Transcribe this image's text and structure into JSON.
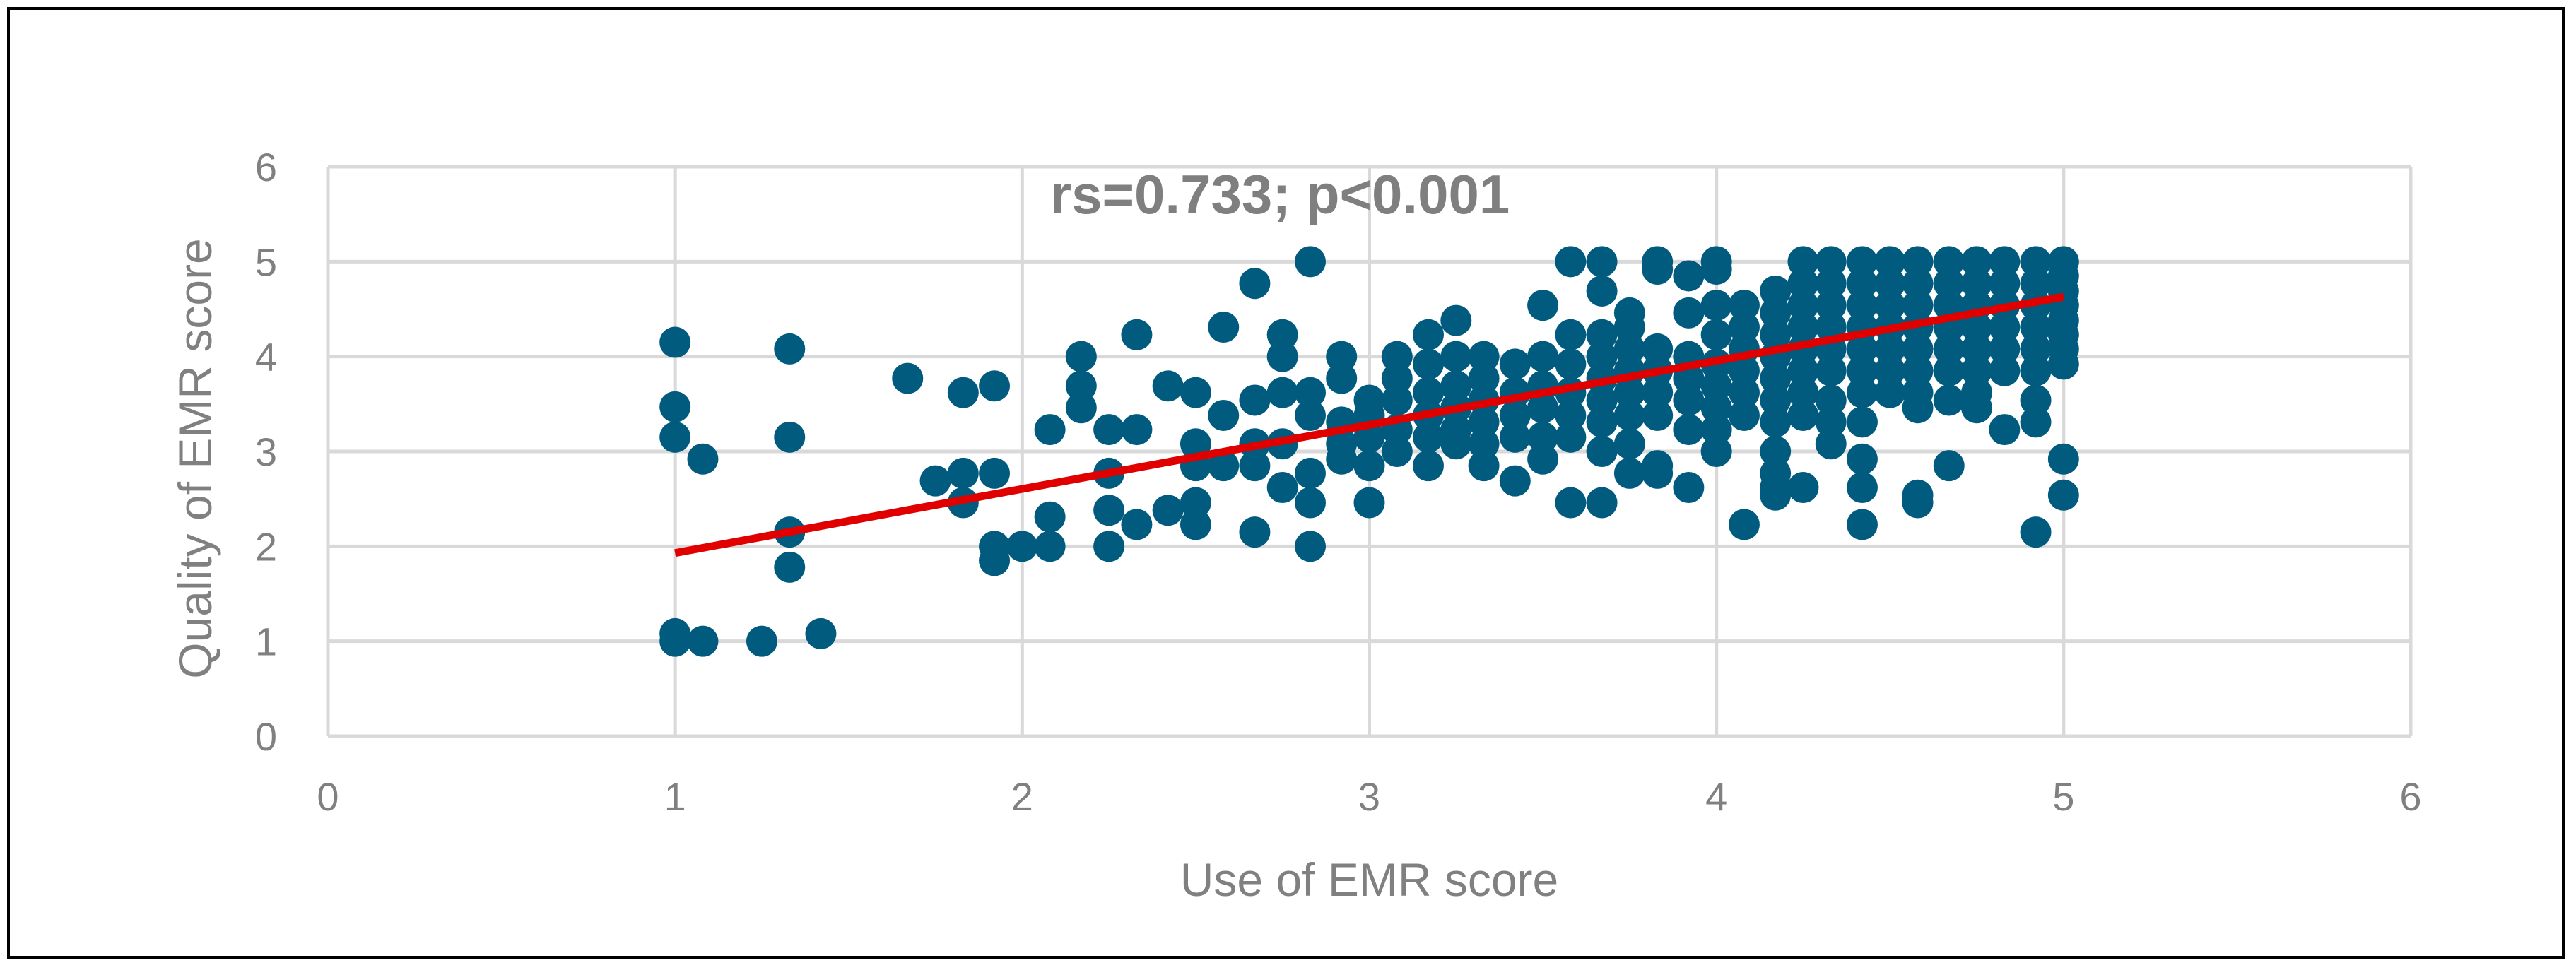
{
  "chart_data": {
    "type": "scatter",
    "title": "",
    "annotation": "rs=0.733; p<0.001",
    "xlabel": "Use of EMR score",
    "ylabel": "Quality of EMR score",
    "xlim": [
      0,
      6
    ],
    "ylim": [
      0,
      6
    ],
    "xticks": [
      0,
      1,
      2,
      3,
      4,
      5,
      6
    ],
    "yticks": [
      0,
      1,
      2,
      3,
      4,
      5,
      6
    ],
    "grid": true,
    "legend": "none",
    "colors": {
      "points": "#005b7f",
      "trendline": "#e00000",
      "grid": "#d9d9d9",
      "text": "#808080"
    },
    "trendline": {
      "x": [
        1,
        5
      ],
      "y": [
        1.93,
        4.63
      ]
    },
    "series": [
      {
        "values": [
          [
            1.0,
            4.15
          ],
          [
            1.0,
            3.47
          ],
          [
            1.0,
            3.15
          ],
          [
            1.0,
            1.08
          ],
          [
            1.0,
            1.0
          ],
          [
            1.08,
            2.92
          ],
          [
            1.08,
            1.0
          ],
          [
            1.25,
            1.0
          ],
          [
            1.33,
            4.08
          ],
          [
            1.33,
            3.15
          ],
          [
            1.33,
            2.15
          ],
          [
            1.33,
            1.78
          ],
          [
            1.42,
            1.08
          ],
          [
            1.67,
            3.77
          ],
          [
            1.75,
            2.69
          ],
          [
            1.83,
            3.62
          ],
          [
            1.83,
            2.77
          ],
          [
            1.83,
            2.46
          ],
          [
            1.92,
            3.69
          ],
          [
            1.92,
            2.77
          ],
          [
            1.92,
            2.0
          ],
          [
            1.92,
            1.85
          ],
          [
            2.0,
            2.0
          ],
          [
            2.08,
            3.23
          ],
          [
            2.08,
            2.31
          ],
          [
            2.08,
            2.0
          ],
          [
            2.17,
            4.0
          ],
          [
            2.17,
            3.69
          ],
          [
            2.17,
            3.46
          ],
          [
            2.25,
            3.23
          ],
          [
            2.25,
            2.77
          ],
          [
            2.25,
            2.38
          ],
          [
            2.25,
            2.0
          ],
          [
            2.33,
            4.23
          ],
          [
            2.33,
            3.23
          ],
          [
            2.33,
            2.23
          ],
          [
            2.42,
            3.69
          ],
          [
            2.42,
            2.38
          ],
          [
            2.5,
            3.62
          ],
          [
            2.5,
            3.08
          ],
          [
            2.5,
            2.85
          ],
          [
            2.5,
            2.46
          ],
          [
            2.5,
            2.23
          ],
          [
            2.58,
            4.31
          ],
          [
            2.58,
            3.38
          ],
          [
            2.58,
            2.85
          ],
          [
            2.67,
            4.77
          ],
          [
            2.67,
            3.54
          ],
          [
            2.67,
            3.08
          ],
          [
            2.67,
            2.85
          ],
          [
            2.67,
            2.15
          ],
          [
            2.75,
            4.23
          ],
          [
            2.75,
            4.0
          ],
          [
            2.75,
            3.62
          ],
          [
            2.75,
            3.08
          ],
          [
            2.75,
            2.62
          ],
          [
            2.83,
            5.0
          ],
          [
            2.83,
            3.62
          ],
          [
            2.83,
            3.38
          ],
          [
            2.83,
            2.77
          ],
          [
            2.83,
            2.46
          ],
          [
            2.83,
            2.0
          ],
          [
            2.92,
            4.0
          ],
          [
            2.92,
            3.77
          ],
          [
            2.92,
            3.31
          ],
          [
            2.92,
            3.08
          ],
          [
            2.92,
            2.92
          ],
          [
            3.0,
            3.54
          ],
          [
            3.0,
            3.38
          ],
          [
            3.0,
            3.15
          ],
          [
            3.0,
            2.85
          ],
          [
            3.0,
            2.46
          ],
          [
            3.08,
            4.0
          ],
          [
            3.08,
            3.77
          ],
          [
            3.08,
            3.54
          ],
          [
            3.08,
            3.23
          ],
          [
            3.08,
            3.0
          ],
          [
            3.17,
            4.23
          ],
          [
            3.17,
            3.92
          ],
          [
            3.17,
            3.62
          ],
          [
            3.17,
            3.38
          ],
          [
            3.17,
            3.15
          ],
          [
            3.17,
            2.85
          ],
          [
            3.25,
            4.38
          ],
          [
            3.25,
            4.0
          ],
          [
            3.25,
            3.69
          ],
          [
            3.25,
            3.46
          ],
          [
            3.25,
            3.23
          ],
          [
            3.25,
            3.08
          ],
          [
            3.33,
            4.0
          ],
          [
            3.33,
            3.77
          ],
          [
            3.33,
            3.54
          ],
          [
            3.33,
            3.31
          ],
          [
            3.33,
            3.08
          ],
          [
            3.33,
            2.85
          ],
          [
            3.42,
            3.92
          ],
          [
            3.42,
            3.62
          ],
          [
            3.42,
            3.38
          ],
          [
            3.42,
            3.15
          ],
          [
            3.42,
            2.69
          ],
          [
            3.5,
            4.54
          ],
          [
            3.5,
            4.0
          ],
          [
            3.5,
            3.69
          ],
          [
            3.5,
            3.46
          ],
          [
            3.5,
            3.15
          ],
          [
            3.5,
            2.92
          ],
          [
            3.58,
            5.0
          ],
          [
            3.58,
            4.23
          ],
          [
            3.58,
            3.92
          ],
          [
            3.58,
            3.62
          ],
          [
            3.58,
            3.38
          ],
          [
            3.58,
            3.15
          ],
          [
            3.58,
            2.46
          ],
          [
            3.67,
            5.0
          ],
          [
            3.67,
            4.69
          ],
          [
            3.67,
            4.23
          ],
          [
            3.67,
            4.0
          ],
          [
            3.67,
            3.77
          ],
          [
            3.67,
            3.54
          ],
          [
            3.67,
            3.31
          ],
          [
            3.67,
            3.0
          ],
          [
            3.67,
            2.46
          ],
          [
            3.75,
            4.46
          ],
          [
            3.75,
            4.31
          ],
          [
            3.75,
            4.08
          ],
          [
            3.75,
            3.85
          ],
          [
            3.75,
            3.62
          ],
          [
            3.75,
            3.38
          ],
          [
            3.75,
            3.08
          ],
          [
            3.75,
            2.77
          ],
          [
            3.83,
            5.0
          ],
          [
            3.83,
            4.92
          ],
          [
            3.83,
            4.08
          ],
          [
            3.83,
            3.85
          ],
          [
            3.83,
            3.62
          ],
          [
            3.83,
            3.38
          ],
          [
            3.83,
            2.85
          ],
          [
            3.83,
            2.77
          ],
          [
            3.92,
            4.85
          ],
          [
            3.92,
            4.46
          ],
          [
            3.92,
            4.0
          ],
          [
            3.92,
            3.77
          ],
          [
            3.92,
            3.54
          ],
          [
            3.92,
            3.23
          ],
          [
            3.92,
            2.62
          ],
          [
            4.0,
            5.0
          ],
          [
            4.0,
            4.92
          ],
          [
            4.0,
            4.54
          ],
          [
            4.0,
            4.23
          ],
          [
            4.0,
            3.92
          ],
          [
            4.0,
            3.69
          ],
          [
            4.0,
            3.46
          ],
          [
            4.0,
            3.23
          ],
          [
            4.0,
            3.0
          ],
          [
            4.08,
            4.54
          ],
          [
            4.08,
            4.31
          ],
          [
            4.08,
            4.08
          ],
          [
            4.08,
            3.85
          ],
          [
            4.08,
            3.62
          ],
          [
            4.08,
            3.38
          ],
          [
            4.08,
            2.23
          ],
          [
            4.17,
            4.69
          ],
          [
            4.17,
            4.46
          ],
          [
            4.17,
            4.23
          ],
          [
            4.17,
            4.0
          ],
          [
            4.17,
            3.77
          ],
          [
            4.17,
            3.54
          ],
          [
            4.17,
            3.31
          ],
          [
            4.17,
            3.0
          ],
          [
            4.17,
            2.77
          ],
          [
            4.17,
            2.62
          ],
          [
            4.17,
            2.54
          ],
          [
            4.25,
            5.0
          ],
          [
            4.25,
            4.77
          ],
          [
            4.25,
            4.54
          ],
          [
            4.25,
            4.31
          ],
          [
            4.25,
            4.08
          ],
          [
            4.25,
            3.85
          ],
          [
            4.25,
            3.62
          ],
          [
            4.25,
            3.38
          ],
          [
            4.25,
            2.62
          ],
          [
            4.33,
            5.0
          ],
          [
            4.33,
            4.77
          ],
          [
            4.33,
            4.54
          ],
          [
            4.33,
            4.31
          ],
          [
            4.33,
            4.08
          ],
          [
            4.33,
            3.85
          ],
          [
            4.33,
            3.54
          ],
          [
            4.33,
            3.31
          ],
          [
            4.33,
            3.08
          ],
          [
            4.42,
            5.0
          ],
          [
            4.42,
            4.77
          ],
          [
            4.42,
            4.54
          ],
          [
            4.42,
            4.31
          ],
          [
            4.42,
            4.08
          ],
          [
            4.42,
            3.85
          ],
          [
            4.42,
            3.62
          ],
          [
            4.42,
            3.31
          ],
          [
            4.42,
            2.92
          ],
          [
            4.42,
            2.62
          ],
          [
            4.42,
            2.23
          ],
          [
            4.5,
            5.0
          ],
          [
            4.5,
            4.77
          ],
          [
            4.5,
            4.54
          ],
          [
            4.5,
            4.31
          ],
          [
            4.5,
            4.08
          ],
          [
            4.5,
            3.85
          ],
          [
            4.5,
            3.62
          ],
          [
            4.58,
            5.0
          ],
          [
            4.58,
            4.77
          ],
          [
            4.58,
            4.54
          ],
          [
            4.58,
            4.31
          ],
          [
            4.58,
            4.08
          ],
          [
            4.58,
            3.85
          ],
          [
            4.58,
            3.62
          ],
          [
            4.58,
            3.46
          ],
          [
            4.58,
            2.54
          ],
          [
            4.58,
            2.46
          ],
          [
            4.67,
            5.0
          ],
          [
            4.67,
            4.77
          ],
          [
            4.67,
            4.54
          ],
          [
            4.67,
            4.31
          ],
          [
            4.67,
            4.08
          ],
          [
            4.67,
            3.85
          ],
          [
            4.67,
            3.54
          ],
          [
            4.67,
            2.85
          ],
          [
            4.75,
            5.0
          ],
          [
            4.75,
            4.77
          ],
          [
            4.75,
            4.54
          ],
          [
            4.75,
            4.31
          ],
          [
            4.75,
            4.08
          ],
          [
            4.75,
            3.85
          ],
          [
            4.75,
            3.62
          ],
          [
            4.75,
            3.46
          ],
          [
            4.83,
            5.0
          ],
          [
            4.83,
            4.77
          ],
          [
            4.83,
            4.54
          ],
          [
            4.83,
            4.31
          ],
          [
            4.83,
            4.08
          ],
          [
            4.83,
            3.85
          ],
          [
            4.83,
            3.23
          ],
          [
            4.92,
            5.0
          ],
          [
            4.92,
            4.77
          ],
          [
            4.92,
            4.54
          ],
          [
            4.92,
            4.31
          ],
          [
            4.92,
            4.08
          ],
          [
            4.92,
            3.85
          ],
          [
            4.92,
            3.54
          ],
          [
            4.92,
            3.31
          ],
          [
            4.92,
            2.15
          ],
          [
            5.0,
            5.0
          ],
          [
            5.0,
            4.85
          ],
          [
            5.0,
            4.69
          ],
          [
            5.0,
            4.54
          ],
          [
            5.0,
            4.38
          ],
          [
            5.0,
            4.23
          ],
          [
            5.0,
            4.08
          ],
          [
            5.0,
            3.92
          ],
          [
            5.0,
            2.92
          ],
          [
            5.0,
            2.54
          ]
        ]
      }
    ]
  }
}
